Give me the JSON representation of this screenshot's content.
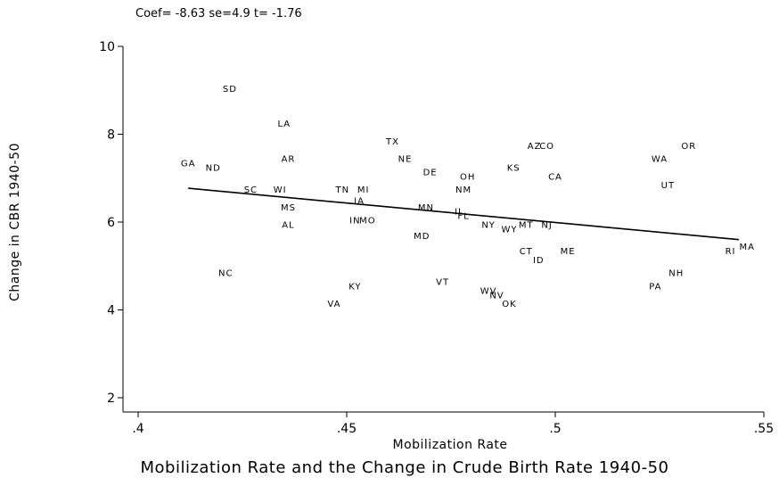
{
  "chart_data": {
    "type": "scatter",
    "annotation": "Coef= -8.63 se=4.9 t= -1.76",
    "title": "Mobilization Rate and the Change in Crude Birth Rate 1940-50",
    "xlabel": "Mobilization Rate",
    "ylabel": "Change in CBR 1940-50",
    "xlim": [
      0.4,
      0.55
    ],
    "ylim": [
      2,
      10
    ],
    "xticks": [
      0.4,
      0.45,
      0.5,
      0.55
    ],
    "xtick_labels": [
      ".4",
      ".45",
      ".5",
      ".55"
    ],
    "yticks": [
      2,
      4,
      6,
      8,
      10
    ],
    "ytick_labels": [
      "2",
      "4",
      "6",
      "8",
      "10"
    ],
    "grid": false,
    "fit_line": {
      "x": [
        0.412,
        0.544
      ],
      "y": [
        6.77,
        5.6
      ]
    },
    "points": [
      {
        "label": "SD",
        "x": 0.422,
        "y": 9.05
      },
      {
        "label": "LA",
        "x": 0.435,
        "y": 8.25
      },
      {
        "label": "TX",
        "x": 0.461,
        "y": 7.85
      },
      {
        "label": "AZ",
        "x": 0.495,
        "y": 7.75
      },
      {
        "label": "CO",
        "x": 0.498,
        "y": 7.75
      },
      {
        "label": "OR",
        "x": 0.532,
        "y": 7.75
      },
      {
        "label": "AR",
        "x": 0.436,
        "y": 7.45
      },
      {
        "label": "NE",
        "x": 0.464,
        "y": 7.45
      },
      {
        "label": "WA",
        "x": 0.525,
        "y": 7.45
      },
      {
        "label": "GA",
        "x": 0.412,
        "y": 7.35
      },
      {
        "label": "ND",
        "x": 0.418,
        "y": 7.25
      },
      {
        "label": "KS",
        "x": 0.49,
        "y": 7.25
      },
      {
        "label": "DE",
        "x": 0.47,
        "y": 7.15
      },
      {
        "label": "OH",
        "x": 0.479,
        "y": 7.05
      },
      {
        "label": "CA",
        "x": 0.5,
        "y": 7.05
      },
      {
        "label": "UT",
        "x": 0.527,
        "y": 6.85
      },
      {
        "label": "SC",
        "x": 0.427,
        "y": 6.75
      },
      {
        "label": "WI",
        "x": 0.434,
        "y": 6.75
      },
      {
        "label": "TN",
        "x": 0.449,
        "y": 6.75
      },
      {
        "label": "MI",
        "x": 0.454,
        "y": 6.75
      },
      {
        "label": "NM",
        "x": 0.478,
        "y": 6.75
      },
      {
        "label": "IA",
        "x": 0.453,
        "y": 6.5
      },
      {
        "label": "MS",
        "x": 0.436,
        "y": 6.35
      },
      {
        "label": "MN",
        "x": 0.469,
        "y": 6.35
      },
      {
        "label": "IL",
        "x": 0.477,
        "y": 6.25
      },
      {
        "label": "FL",
        "x": 0.478,
        "y": 6.15
      },
      {
        "label": "IN",
        "x": 0.452,
        "y": 6.05
      },
      {
        "label": "MO",
        "x": 0.455,
        "y": 6.05
      },
      {
        "label": "AL",
        "x": 0.436,
        "y": 5.95
      },
      {
        "label": "NY",
        "x": 0.484,
        "y": 5.95
      },
      {
        "label": "MT",
        "x": 0.493,
        "y": 5.95
      },
      {
        "label": "NJ",
        "x": 0.498,
        "y": 5.95
      },
      {
        "label": "WY",
        "x": 0.489,
        "y": 5.85
      },
      {
        "label": "MD",
        "x": 0.468,
        "y": 5.7
      },
      {
        "label": "CT",
        "x": 0.493,
        "y": 5.35
      },
      {
        "label": "ME",
        "x": 0.503,
        "y": 5.35
      },
      {
        "label": "ID",
        "x": 0.496,
        "y": 5.15
      },
      {
        "label": "RI",
        "x": 0.542,
        "y": 5.35
      },
      {
        "label": "MA",
        "x": 0.546,
        "y": 5.45
      },
      {
        "label": "NC",
        "x": 0.421,
        "y": 4.85
      },
      {
        "label": "NH",
        "x": 0.529,
        "y": 4.85
      },
      {
        "label": "VT",
        "x": 0.473,
        "y": 4.65
      },
      {
        "label": "KY",
        "x": 0.452,
        "y": 4.55
      },
      {
        "label": "PA",
        "x": 0.524,
        "y": 4.55
      },
      {
        "label": "WV",
        "x": 0.484,
        "y": 4.45
      },
      {
        "label": "NV",
        "x": 0.486,
        "y": 4.35
      },
      {
        "label": "VA",
        "x": 0.447,
        "y": 4.15
      },
      {
        "label": "OK",
        "x": 0.489,
        "y": 4.15
      }
    ]
  }
}
